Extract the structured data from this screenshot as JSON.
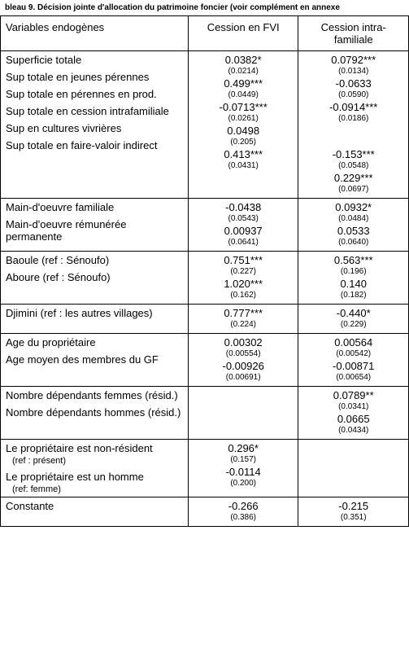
{
  "caption": "bleau 9. Décision jointe d'allocation du patrimoine foncier (voir complément en annexe",
  "headers": {
    "vars": "Variables endogènes",
    "col1": "Cession en FVI",
    "col2": "Cession intra-familiale"
  },
  "groups": [
    {
      "rows": [
        {
          "label": "Superficie totale",
          "c1": "0.0382*",
          "s1": "(0.0214)",
          "c2": "0.0792***",
          "s2": "(0.0134)"
        },
        {
          "label": "Sup totale en jeunes pérennes",
          "c1": "0.499***",
          "s1": "(0.0449)",
          "c2": "-0.0633",
          "s2": "(0.0590)"
        },
        {
          "label": "Sup totale en pérennes en prod.",
          "c1": "-0.0713***",
          "s1": "(0.0261)",
          "c2": "-0.0914***",
          "s2": "(0.0186)"
        },
        {
          "label": "Sup totale en cession intrafamiliale",
          "c1": "0.0498",
          "s1": "(0.205)",
          "c2": "",
          "s2": ""
        },
        {
          "label": "Sup en cultures vivrières",
          "c1": "0.413***",
          "s1": "(0.0431)",
          "c2": "-0.153***",
          "s2": "(0.0548)"
        },
        {
          "label": "Sup totale en faire-valoir indirect",
          "c1": "",
          "s1": "",
          "c2": "0.229***",
          "s2": "(0.0697)"
        }
      ]
    },
    {
      "rows": [
        {
          "label": "Main-d'oeuvre familiale",
          "c1": "-0.0438",
          "s1": "(0.0543)",
          "c2": "0.0932*",
          "s2": "(0.0484)"
        },
        {
          "label": "Main-d'oeuvre rémunérée permanente",
          "c1": "0.00937",
          "s1": "(0.0641)",
          "c2": "0.0533",
          "s2": "(0.0640)"
        }
      ]
    },
    {
      "rows": [
        {
          "label": "Baoule (ref : Sénoufo)",
          "c1": "0.751***",
          "s1": "(0.227)",
          "c2": "0.563***",
          "s2": "(0.196)"
        },
        {
          "label": "Aboure (ref : Sénoufo)",
          "c1": "1.020***",
          "s1": "(0.162)",
          "c2": "0.140",
          "s2": "(0.182)"
        }
      ]
    },
    {
      "rows": [
        {
          "label": "Djimini (ref : les autres villages)",
          "c1": "0.777***",
          "s1": "(0.224)",
          "c2": "-0.440*",
          "s2": "(0.229)"
        }
      ]
    },
    {
      "rows": [
        {
          "label": "Age du propriétaire",
          "c1": "0.00302",
          "s1": "(0.00554)",
          "c2": "0.00564",
          "s2": "(0.00542)"
        },
        {
          "label": "Age moyen des membres du GF",
          "c1": "-0.00926",
          "s1": "(0.00691)",
          "c2": "-0.00871",
          "s2": "(0.00654)"
        }
      ]
    },
    {
      "rows": [
        {
          "label": "Nombre dépendants femmes (résid.)",
          "c1": "",
          "s1": "",
          "c2": "0.0789**",
          "s2": "(0.0341)"
        },
        {
          "label": "Nombre dépendants hommes (résid.)",
          "c1": "",
          "s1": "",
          "c2": "0.0665",
          "s2": "(0.0434)"
        }
      ]
    },
    {
      "rows": [
        {
          "label": "Le propriétaire est non-résident",
          "ref": "(ref : présent)",
          "c1": "0.296*",
          "s1": "(0.157)",
          "c2": "",
          "s2": ""
        },
        {
          "label": "Le propriétaire est un homme",
          "ref": "(ref: femme)",
          "c1": "-0.0114",
          "s1": "(0.200)",
          "c2": "",
          "s2": ""
        }
      ]
    },
    {
      "rows": [
        {
          "label": "Constante",
          "c1": "-0.266",
          "s1": "(0.386)",
          "c2": "-0.215",
          "s2": "(0.351)"
        }
      ]
    }
  ]
}
